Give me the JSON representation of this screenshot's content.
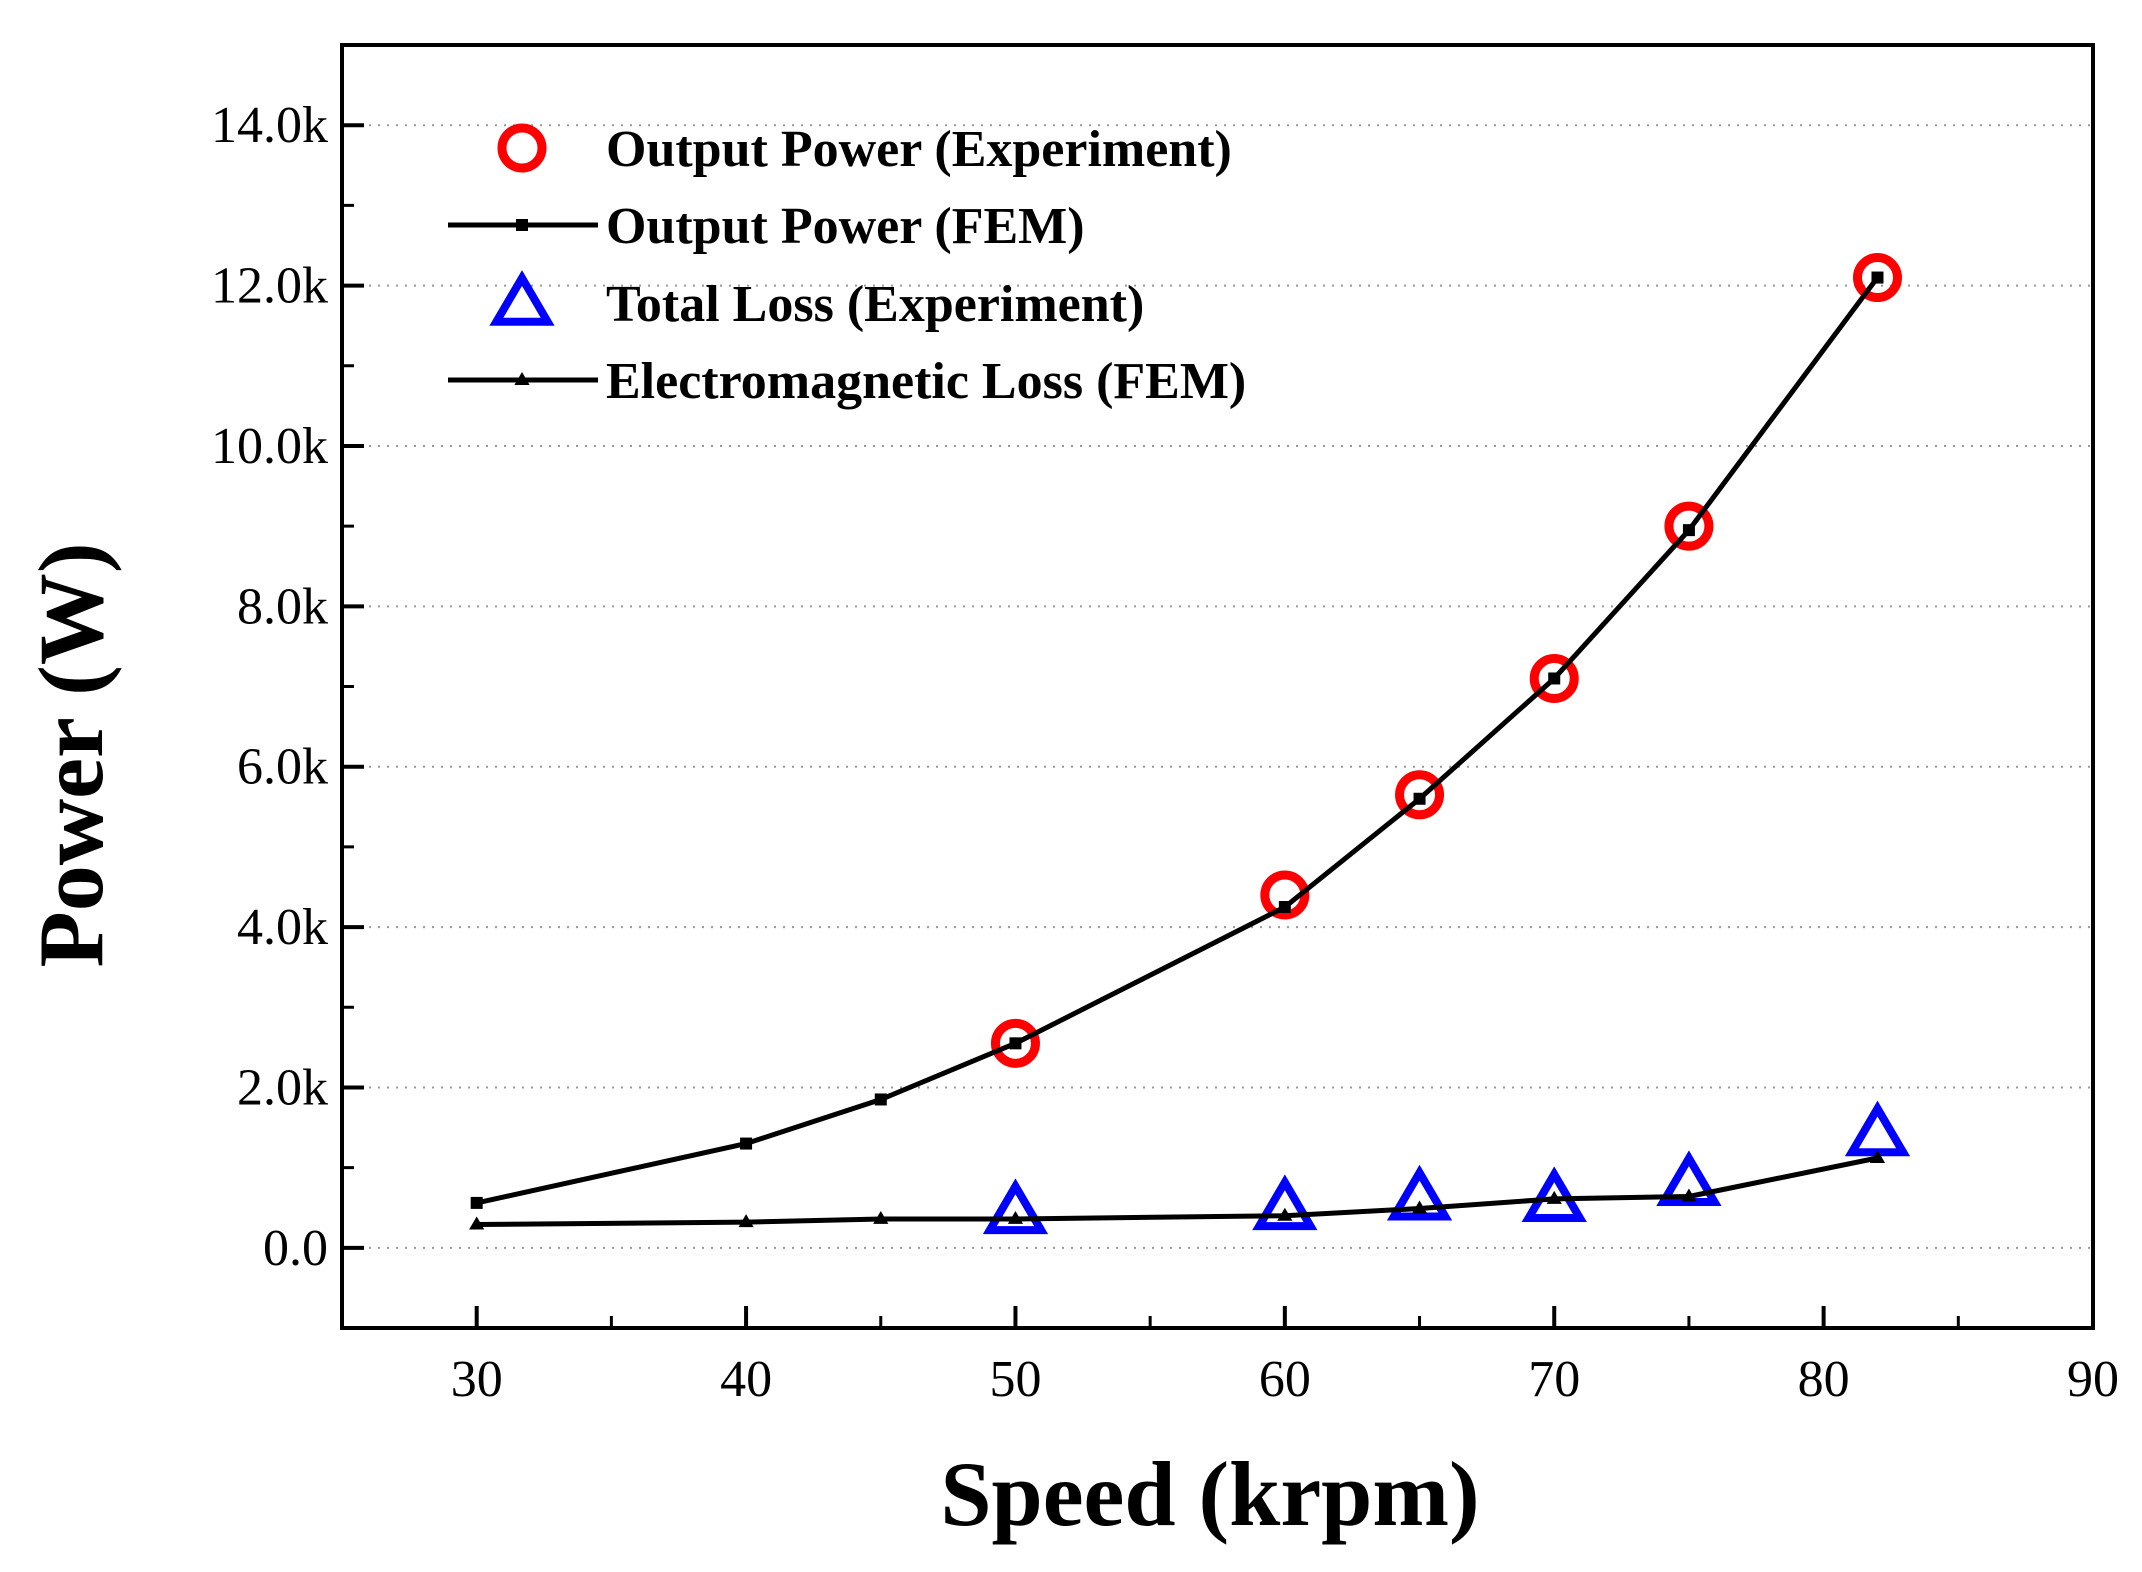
{
  "chart_data": {
    "type": "line",
    "xlabel": "Speed (krpm)",
    "ylabel": "Power (W)",
    "xlim": [
      25,
      90
    ],
    "ylim": [
      -1000,
      15000
    ],
    "x_ticks": [
      30,
      40,
      50,
      60,
      70,
      80,
      90
    ],
    "x_tick_labels": [
      "30",
      "40",
      "50",
      "60",
      "70",
      "80",
      "90"
    ],
    "y_ticks": [
      0,
      2000,
      4000,
      6000,
      8000,
      10000,
      12000,
      14000
    ],
    "y_tick_labels": [
      "0.0",
      "2.0k",
      "4.0k",
      "6.0k",
      "8.0k",
      "10.0k",
      "12.0k",
      "14.0k"
    ],
    "grid": "horizontal-dotted",
    "legend_position": "top-left",
    "series": [
      {
        "name": "Output Power (Experiment)",
        "style": "marker-circle",
        "color": "#ff0000",
        "x": [
          50,
          60,
          65,
          70,
          75,
          82
        ],
        "y": [
          2550,
          4400,
          5650,
          7100,
          9000,
          12100
        ]
      },
      {
        "name": "Output Power (FEM)",
        "style": "line-square",
        "color": "#000000",
        "x": [
          30,
          40,
          45,
          50,
          60,
          65,
          70,
          75,
          82
        ],
        "y": [
          560,
          1300,
          1850,
          2550,
          4250,
          5600,
          7100,
          8950,
          12100
        ]
      },
      {
        "name": "Total Loss (Experiment)",
        "style": "marker-triangle",
        "color": "#0000ff",
        "x": [
          50,
          60,
          65,
          70,
          75,
          82
        ],
        "y": [
          430,
          480,
          600,
          580,
          780,
          1400
        ]
      },
      {
        "name": "Electromagnetic  Loss (FEM)",
        "style": "line-triangle",
        "color": "#000000",
        "x": [
          30,
          40,
          45,
          50,
          60,
          65,
          70,
          75,
          82
        ],
        "y": [
          290,
          320,
          360,
          360,
          400,
          490,
          610,
          640,
          1120
        ]
      }
    ]
  }
}
